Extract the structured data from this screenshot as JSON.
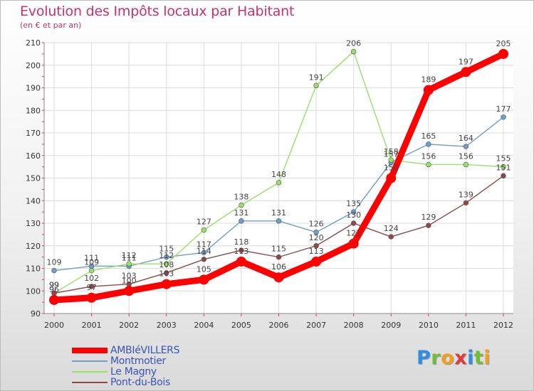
{
  "chart_data": {
    "type": "line",
    "title": "Evolution des Impôts locaux par Habitant",
    "subtitle": "(en € et par an)",
    "xlabel": "",
    "ylabel": "",
    "categories": [
      "2000",
      "2001",
      "2002",
      "2003",
      "2004",
      "2005",
      "2006",
      "2007",
      "2008",
      "2009",
      "2010",
      "2011",
      "2012"
    ],
    "ylim": [
      90,
      210
    ],
    "yticks": [
      90,
      100,
      110,
      120,
      130,
      140,
      150,
      160,
      170,
      180,
      190,
      200,
      210
    ],
    "grid": true,
    "legend": "bottom-left",
    "series": [
      {
        "name": "AMBIéVILLERS",
        "color": "#ff0000",
        "highlight": true,
        "values": [
          96,
          97,
          100,
          103,
          105,
          113,
          106,
          113,
          121,
          150,
          189,
          197,
          205
        ]
      },
      {
        "name": "Montmotier",
        "color": "#6f9fc9",
        "highlight": false,
        "values": [
          109,
          111,
          111,
          115,
          117,
          131,
          131,
          126,
          135,
          157,
          165,
          164,
          177
        ]
      },
      {
        "name": "Le Magny",
        "color": "#99e06a",
        "highlight": false,
        "values": [
          99,
          109,
          112,
          112,
          127,
          138,
          148,
          191,
          206,
          158,
          156,
          156,
          155
        ]
      },
      {
        "name": "Pont-du-Bois",
        "color": "#8b4a4a",
        "highlight": false,
        "values": [
          99,
          102,
          103,
          108,
          114,
          118,
          115,
          120,
          130,
          124,
          129,
          139,
          151
        ]
      }
    ]
  },
  "brand": {
    "text": "Proxiti",
    "letters": [
      "P",
      "r",
      "o",
      "x",
      "i",
      "t",
      "i"
    ],
    "colors": [
      "#2f8fe0",
      "#6fbf3c",
      "#f0a020",
      "#e03a3a",
      "#2f8fe0",
      "#6fbf3c",
      "#f0a020"
    ]
  }
}
